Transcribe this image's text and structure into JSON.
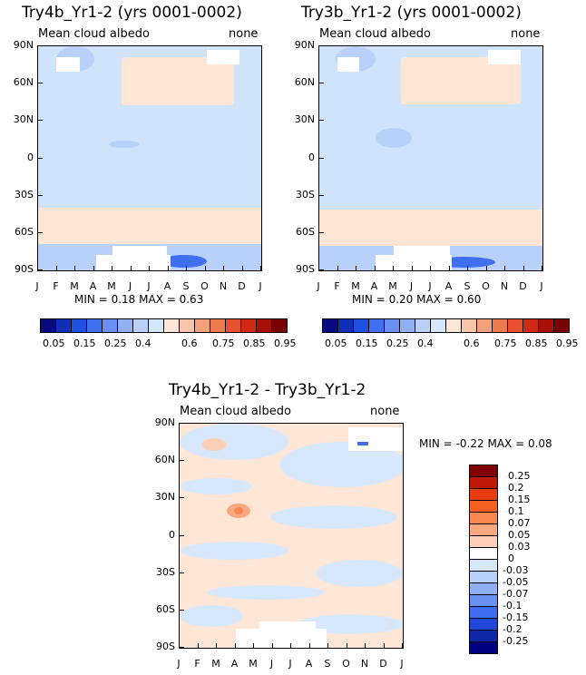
{
  "chart_data": [
    {
      "type": "heatmap",
      "title": "Try4b_Yr1-2 (yrs 0001-0002)",
      "subtitle_left": "Mean cloud albedo",
      "subtitle_right": "none",
      "x_ticks": [
        "J",
        "F",
        "M",
        "A",
        "M",
        "J",
        "J",
        "A",
        "S",
        "O",
        "N",
        "D",
        "J"
      ],
      "y_ticks": [
        "90N",
        "60N",
        "30N",
        "0",
        "30S",
        "60S",
        "90S"
      ],
      "min_label": "MIN =",
      "min_value": "0.18",
      "max_label": "MAX =",
      "max_value": "0.63",
      "colorbar_labels": [
        "0.05",
        "0.15",
        "0.25",
        "0.4",
        "0.6",
        "0.75",
        "0.85",
        "0.95"
      ]
    },
    {
      "type": "heatmap",
      "title": "Try3b_Yr1-2 (yrs 0001-0002)",
      "subtitle_left": "Mean cloud albedo",
      "subtitle_right": "none",
      "x_ticks": [
        "J",
        "F",
        "M",
        "A",
        "M",
        "J",
        "J",
        "A",
        "S",
        "O",
        "N",
        "D",
        "J"
      ],
      "y_ticks": [
        "90N",
        "60N",
        "30N",
        "0",
        "30S",
        "60S",
        "90S"
      ],
      "min_label": "MIN =",
      "min_value": "0.20",
      "max_label": "MAX =",
      "max_value": "0.60",
      "colorbar_labels": [
        "0.05",
        "0.15",
        "0.25",
        "0.4",
        "0.6",
        "0.75",
        "0.85",
        "0.95"
      ]
    },
    {
      "type": "heatmap",
      "title": "Try4b_Yr1-2 - Try3b_Yr1-2",
      "subtitle_left": "Mean cloud albedo",
      "subtitle_right": "none",
      "x_ticks": [
        "J",
        "F",
        "M",
        "A",
        "M",
        "J",
        "J",
        "A",
        "S",
        "O",
        "N",
        "D",
        "J"
      ],
      "y_ticks": [
        "90N",
        "60N",
        "30N",
        "0",
        "30S",
        "60S",
        "90S"
      ],
      "min_label": "MIN =",
      "min_value": "-0.22",
      "max_label": "MAX =",
      "max_value": "0.08",
      "colorbar_labels": [
        "0.25",
        "0.2",
        "0.15",
        "0.1",
        "0.07",
        "0.05",
        "0.03",
        "0",
        "-0.03",
        "-0.05",
        "-0.07",
        "-0.1",
        "-0.15",
        "-0.2",
        "-0.25"
      ]
    }
  ],
  "colors": {
    "abs_scale": [
      "#0a0a80",
      "#1030b8",
      "#2050e0",
      "#4070f0",
      "#6a90f4",
      "#90b0f6",
      "#b8d0fa",
      "#d4e6fc",
      "#fde6d6",
      "#f8c4aa",
      "#f4a07a",
      "#ee7a50",
      "#e85030",
      "#d02a14",
      "#a81008",
      "#780404"
    ],
    "diff_scale": [
      "#800000",
      "#c01808",
      "#e83c10",
      "#f46020",
      "#f88850",
      "#faa880",
      "#fcd0b8",
      "#ffffff",
      "#d8e8fc",
      "#b8d0fa",
      "#90b0f6",
      "#6a90f4",
      "#3f6cf0",
      "#2048d8",
      "#0c28a8",
      "#000080"
    ]
  }
}
